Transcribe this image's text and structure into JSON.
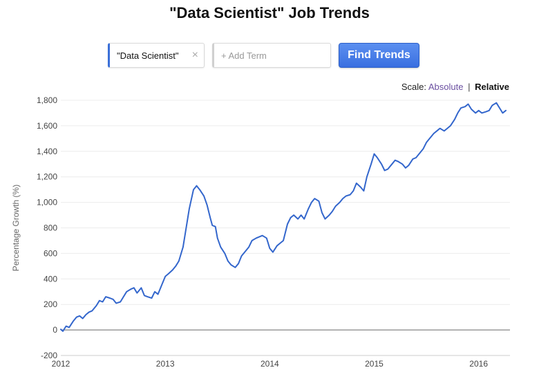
{
  "header": {
    "title": "\"Data Scientist\" Job Trends"
  },
  "search": {
    "terms": [
      {
        "label": "\"Data Scientist\""
      }
    ],
    "close_glyph": "×",
    "add_placeholder": "+ Add Term",
    "submit_label": "Find Trends"
  },
  "scale": {
    "label": "Scale:",
    "options": [
      "Absolute",
      "Relative"
    ],
    "separator": "|",
    "selected": "Relative"
  },
  "colors": {
    "line": "#3366cc",
    "accent": "#3a6fe0"
  },
  "chart_data": {
    "type": "line",
    "title": "",
    "xlabel": "",
    "ylabel": "Percentage Growth (%)",
    "xlim": [
      2012.0,
      2016.3
    ],
    "ylim": [
      -200,
      1800
    ],
    "yticks": [
      -200,
      0,
      200,
      400,
      600,
      800,
      1000,
      1200,
      1400,
      1600,
      1800
    ],
    "ytick_labels": [
      "-200",
      "0",
      "200",
      "400",
      "600",
      "800",
      "1,000",
      "1,200",
      "1,400",
      "1,600",
      "1,800"
    ],
    "xticks": [
      2012,
      2013,
      2014,
      2015,
      2016
    ],
    "xtick_labels": [
      "2012",
      "2013",
      "2014",
      "2015",
      "2016"
    ],
    "grid": true,
    "series": [
      {
        "name": "",
        "color": "#3366cc",
        "x": [
          2012.0,
          2012.02,
          2012.05,
          2012.08,
          2012.12,
          2012.15,
          2012.18,
          2012.21,
          2012.24,
          2012.27,
          2012.3,
          2012.34,
          2012.37,
          2012.4,
          2012.43,
          2012.47,
          2012.5,
          2012.53,
          2012.57,
          2012.6,
          2012.63,
          2012.67,
          2012.7,
          2012.73,
          2012.77,
          2012.8,
          2012.83,
          2012.87,
          2012.9,
          2012.93,
          2012.97,
          2013.0,
          2013.03,
          2013.07,
          2013.1,
          2013.13,
          2013.17,
          2013.2,
          2013.23,
          2013.27,
          2013.3,
          2013.33,
          2013.37,
          2013.4,
          2013.43,
          2013.45,
          2013.48,
          2013.5,
          2013.53,
          2013.57,
          2013.6,
          2013.63,
          2013.67,
          2013.7,
          2013.73,
          2013.77,
          2013.8,
          2013.83,
          2013.87,
          2013.9,
          2013.93,
          2013.97,
          2014.0,
          2014.03,
          2014.07,
          2014.1,
          2014.13,
          2014.17,
          2014.2,
          2014.23,
          2014.27,
          2014.3,
          2014.33,
          2014.37,
          2014.4,
          2014.43,
          2014.47,
          2014.5,
          2014.53,
          2014.57,
          2014.6,
          2014.63,
          2014.67,
          2014.7,
          2014.73,
          2014.77,
          2014.8,
          2014.83,
          2014.87,
          2014.9,
          2014.93,
          2014.97,
          2015.0,
          2015.03,
          2015.07,
          2015.1,
          2015.13,
          2015.17,
          2015.2,
          2015.23,
          2015.27,
          2015.3,
          2015.33,
          2015.37,
          2015.4,
          2015.43,
          2015.47,
          2015.5,
          2015.53,
          2015.57,
          2015.6,
          2015.63,
          2015.67,
          2015.7,
          2015.73,
          2015.77,
          2015.8,
          2015.83,
          2015.87,
          2015.9,
          2015.93,
          2015.97,
          2016.0,
          2016.03,
          2016.07,
          2016.1,
          2016.13,
          2016.17,
          2016.2,
          2016.23,
          2016.26
        ],
        "y": [
          5,
          -10,
          30,
          20,
          70,
          100,
          110,
          90,
          120,
          140,
          150,
          190,
          230,
          220,
          260,
          250,
          240,
          210,
          220,
          260,
          300,
          320,
          330,
          290,
          330,
          270,
          260,
          250,
          300,
          280,
          360,
          420,
          440,
          470,
          500,
          540,
          650,
          800,
          950,
          1100,
          1130,
          1100,
          1050,
          980,
          880,
          820,
          810,
          720,
          650,
          600,
          540,
          510,
          490,
          520,
          580,
          620,
          650,
          700,
          720,
          730,
          740,
          720,
          640,
          610,
          660,
          680,
          700,
          830,
          880,
          900,
          870,
          900,
          870,
          950,
          1000,
          1030,
          1010,
          920,
          870,
          900,
          930,
          970,
          1000,
          1030,
          1050,
          1060,
          1090,
          1150,
          1120,
          1090,
          1200,
          1300,
          1380,
          1350,
          1300,
          1250,
          1260,
          1300,
          1330,
          1320,
          1300,
          1270,
          1290,
          1340,
          1350,
          1380,
          1420,
          1470,
          1500,
          1540,
          1560,
          1580,
          1560,
          1580,
          1600,
          1650,
          1700,
          1740,
          1750,
          1770,
          1730,
          1700,
          1720,
          1700,
          1710,
          1720,
          1760,
          1780,
          1740,
          1700,
          1720
        ]
      }
    ]
  }
}
